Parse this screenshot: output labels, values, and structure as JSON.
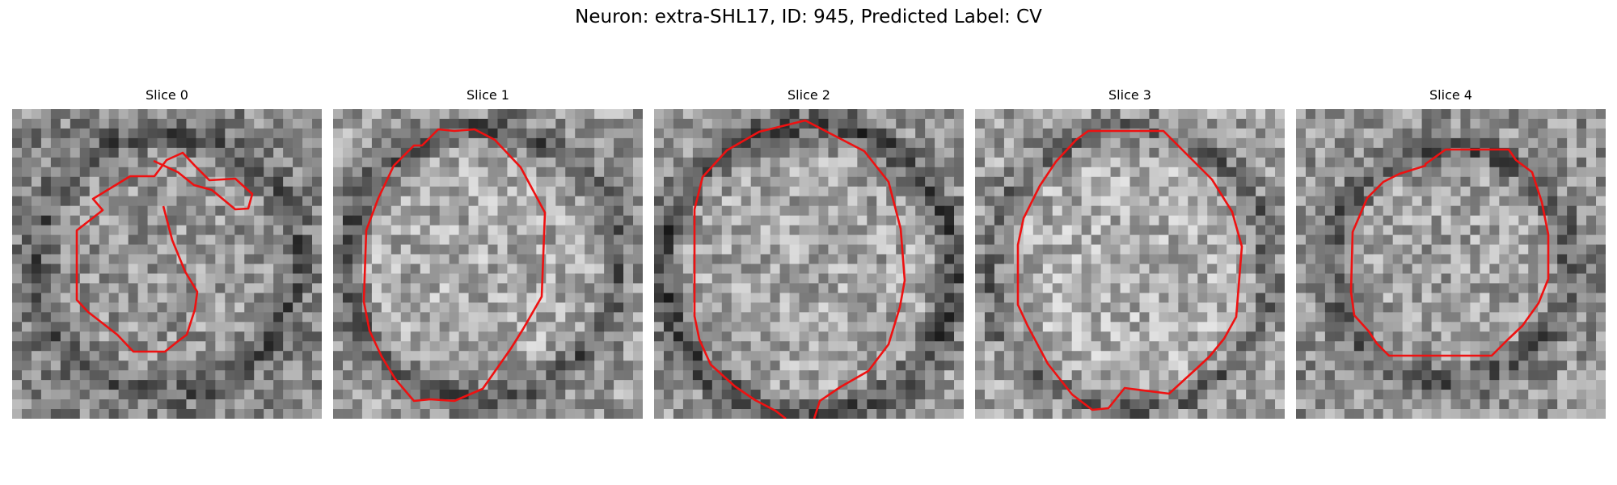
{
  "figure": {
    "title": "Neuron: extra-SHL17, ID: 945, Predicted Label: CV",
    "contour_color": "#ee1111"
  },
  "slices": [
    {
      "title": "Slice 0"
    },
    {
      "title": "Slice 1"
    },
    {
      "title": "Slice 2"
    },
    {
      "title": "Slice 3"
    },
    {
      "title": "Slice 4"
    }
  ]
}
